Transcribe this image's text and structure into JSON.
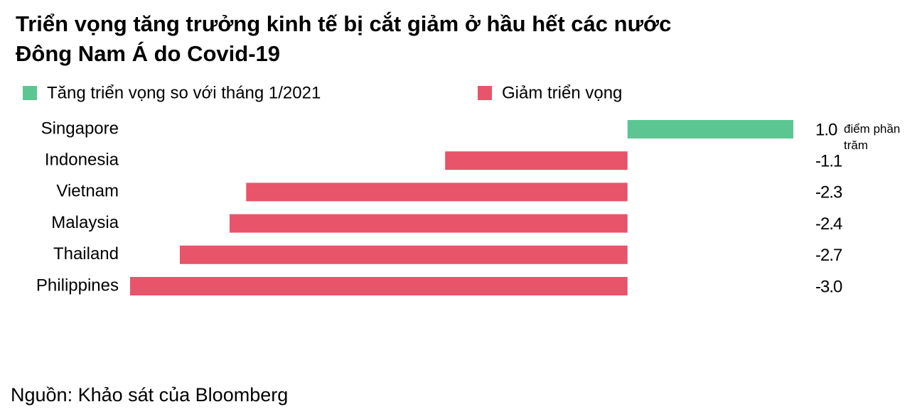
{
  "chart_data": {
    "type": "bar",
    "orientation": "horizontal",
    "title": "Triển vọng tăng trưởng kinh tế bị cắt giảm ở hầu hết các nước Đông Nam Á do Covid-19",
    "categories": [
      "Singapore",
      "Indonesia",
      "Vietnam",
      "Malaysia",
      "Thailand",
      "Philippines"
    ],
    "series": [
      {
        "name": "Tăng triển vọng so với tháng 1/2021",
        "color": "#5cc692",
        "values": [
          1.0,
          null,
          null,
          null,
          null,
          null
        ],
        "value_labels": [
          "1.0",
          null,
          null,
          null,
          null,
          null
        ]
      },
      {
        "name": "Giảm triển vọng",
        "color": "#e8546a",
        "values": [
          null,
          -1.1,
          -2.3,
          -2.4,
          -2.7,
          -3.0
        ],
        "value_labels": [
          null,
          "-1.1",
          "-2.3",
          "-2.4",
          "-2.7",
          "-3.0"
        ]
      }
    ],
    "unit_annotation": "điểm phần trăm",
    "xlim": [
      -3,
      1
    ],
    "source": "Nguồn: Khảo sát của Bloomberg"
  }
}
